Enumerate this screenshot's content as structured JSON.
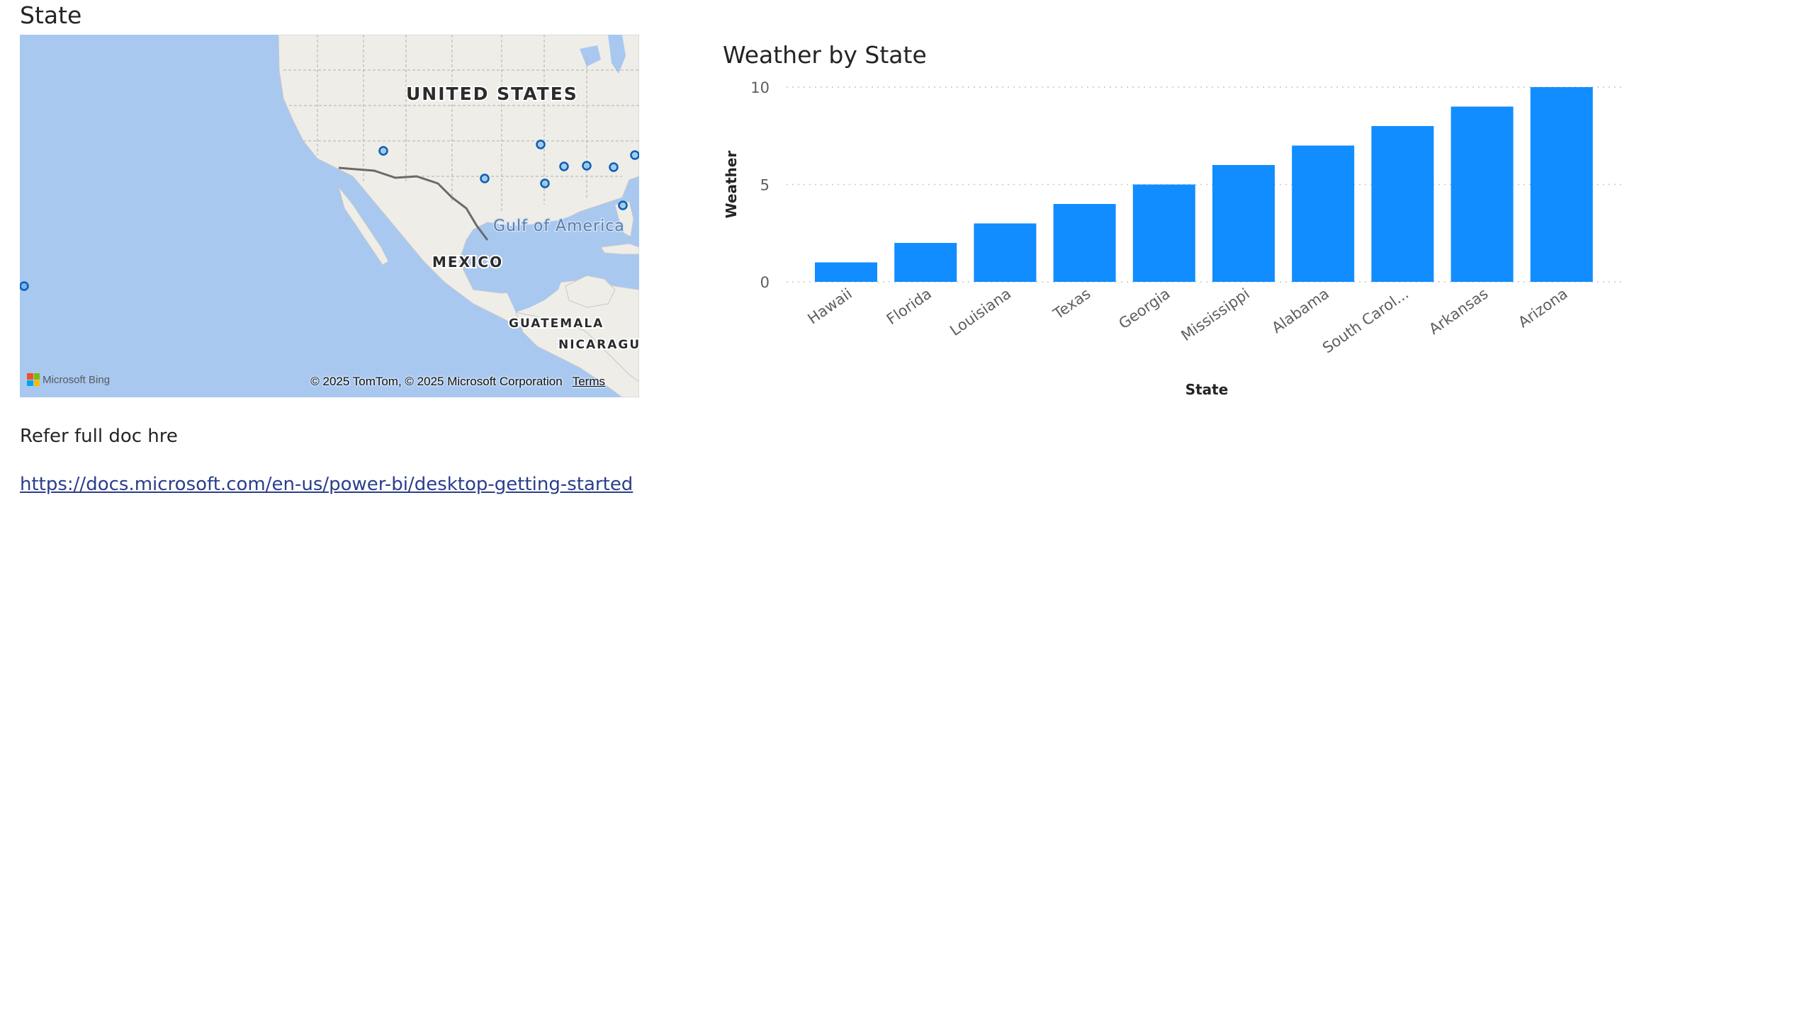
{
  "map": {
    "title": "State",
    "labels": {
      "united_states": "UNITED STATES",
      "gulf": "Gulf of America",
      "mexico": "MEXICO",
      "guatemala": "GUATEMALA",
      "nicaragua": "NICARAGU"
    },
    "attribution": "© 2025 TomTom, © 2025 Microsoft Corporation",
    "terms": "Terms",
    "logo_text": "Microsoft Bing",
    "colors": {
      "water": "#a8c8f0",
      "land": "#eeece6",
      "dot": "#1b8cf0"
    }
  },
  "textbox": {
    "line1": "Refer full doc hre",
    "link": "https://docs.microsoft.com/en-us/power-bi/desktop-getting-started"
  },
  "chart": {
    "title": "Weather by State",
    "xlabel": "State",
    "ylabel": "Weather",
    "bar_color": "#118dff"
  },
  "chart_data": {
    "type": "bar",
    "title": "Weather by State",
    "xlabel": "State",
    "ylabel": "Weather",
    "categories": [
      "Hawaii",
      "Florida",
      "Louisiana",
      "Texas",
      "Georgia",
      "Mississippi",
      "Alabama",
      "South Carol...",
      "Arkansas",
      "Arizona"
    ],
    "values": [
      1,
      2,
      3,
      4,
      5,
      6,
      7,
      8,
      9,
      10
    ],
    "yticks": [
      "0",
      "5",
      "10"
    ],
    "ylim": [
      0,
      10
    ],
    "grid": true
  }
}
